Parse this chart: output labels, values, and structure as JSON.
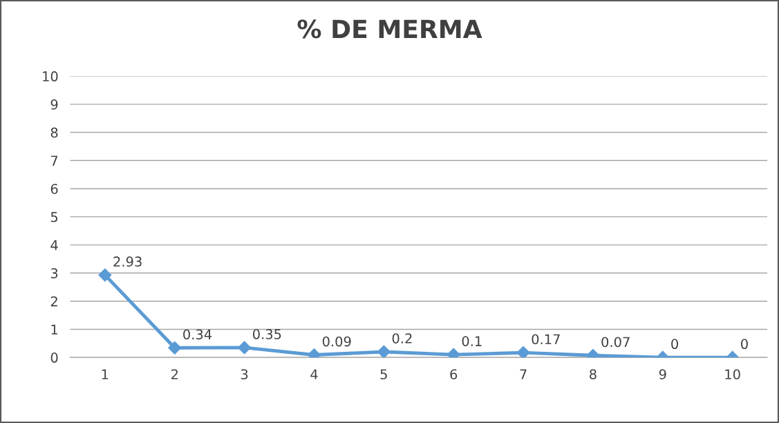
{
  "chart_data": {
    "type": "line",
    "title": "% DE MERMA",
    "categories": [
      "1",
      "2",
      "3",
      "4",
      "5",
      "6",
      "7",
      "8",
      "9",
      "10"
    ],
    "values": [
      2.93,
      0.34,
      0.35,
      0.09,
      0.2,
      0.1,
      0.17,
      0.07,
      0,
      0
    ],
    "color": "#5b9bd5",
    "ylim": [
      0,
      10
    ],
    "yticks": [
      0,
      1,
      2,
      3,
      4,
      5,
      6,
      7,
      8,
      9,
      10
    ],
    "grid": "y",
    "marker": "diamond",
    "line_style": "solid",
    "data_labels": true,
    "legend": false
  }
}
